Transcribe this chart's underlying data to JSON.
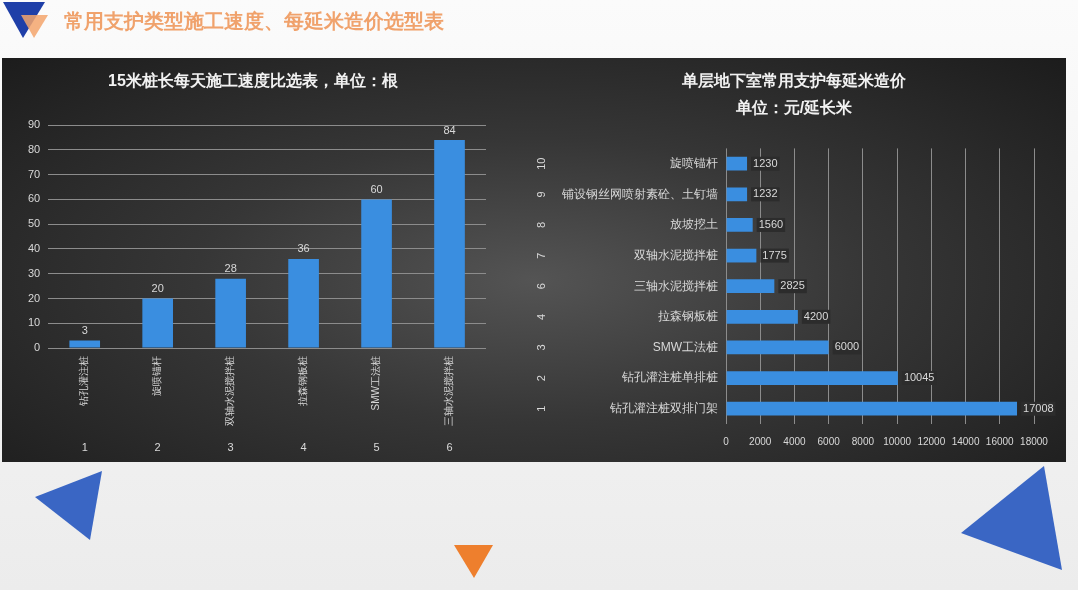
{
  "chart_data": [
    {
      "type": "bar",
      "title": "15米桩长每天施工速度比选表，单位：根",
      "categories": [
        "钻孔灌注桩",
        "旋喷锚杆",
        "双轴水泥搅拌桩",
        "拉森钢板桩",
        "SMW工法桩",
        "三轴水泥搅拌桩"
      ],
      "values": [
        3,
        20,
        28,
        36,
        60,
        84
      ],
      "color": "#3a8ee0",
      "ylim": [
        0,
        90
      ],
      "yticks": [
        0,
        10,
        20,
        30,
        40,
        50,
        60,
        70,
        80,
        90
      ],
      "grid": "y",
      "data_labels": true,
      "annotations": [
        "常用支护类型施工速度、每延米造价选型表",
        "1",
        "2",
        "3",
        "4",
        "5",
        "6"
      ]
    },
    {
      "type": "bar",
      "orientation": "horizontal",
      "title": "单层地下室常用支护每延米造价",
      "subtitle": "单位：元/延长米",
      "categories": [
        "旋喷锚杆",
        "铺设钢丝网喷射素砼、土钉墙",
        "放坡挖土",
        "双轴水泥搅拌桩",
        "三轴水泥搅拌桩",
        "拉森钢板桩",
        "SMW工法桩",
        "钻孔灌注桩单排桩",
        "钻孔灌注桩双排门架"
      ],
      "values": [
        1230,
        1232,
        1560,
        1775,
        2825,
        4200,
        6000,
        10045,
        17008
      ],
      "color": "#3a8ee0",
      "xlim": [
        0,
        18000
      ],
      "xticks": [
        0,
        2000,
        4000,
        6000,
        8000,
        10000,
        12000,
        14000,
        16000,
        18000
      ],
      "grid": "x",
      "data_labels": true,
      "annotations": [
        "10",
        "9",
        "8",
        "7",
        "6",
        "4",
        "3",
        "2",
        "1"
      ]
    }
  ]
}
